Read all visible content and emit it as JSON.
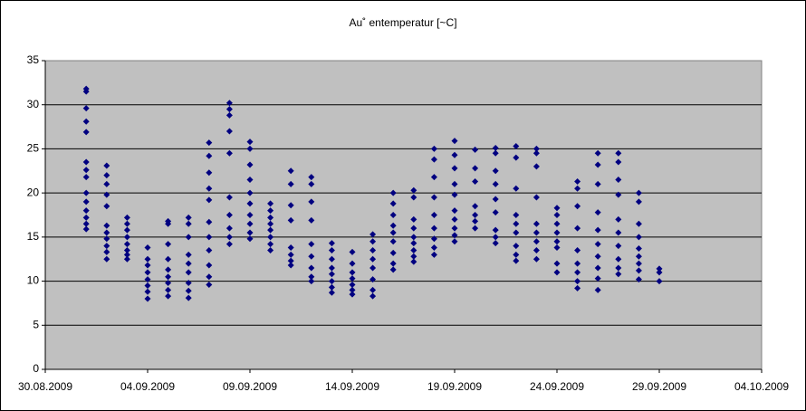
{
  "chart_data": {
    "type": "scatter",
    "title": "Au˚ entemperatur [~C]",
    "xlim": [
      "30.08.2009",
      "04.10.2009"
    ],
    "xticks": [
      "30.08.2009",
      "04.09.2009",
      "09.09.2009",
      "14.09.2009",
      "19.09.2009",
      "24.09.2009",
      "29.09.2009",
      "04.10.2009"
    ],
    "ylim": [
      0,
      35
    ],
    "yticks": [
      0,
      5,
      10,
      15,
      20,
      25,
      30,
      35
    ],
    "grid": true,
    "series": [
      {
        "color": "#000080",
        "x": [
          "01.09.2009",
          "01.09.2009",
          "01.09.2009",
          "01.09.2009",
          "01.09.2009",
          "01.09.2009",
          "01.09.2009",
          "01.09.2009",
          "01.09.2009",
          "01.09.2009",
          "01.09.2009",
          "01.09.2009",
          "01.09.2009",
          "01.09.2009",
          "02.09.2009",
          "02.09.2009",
          "02.09.2009",
          "02.09.2009",
          "02.09.2009",
          "02.09.2009",
          "02.09.2009",
          "02.09.2009",
          "02.09.2009",
          "02.09.2009",
          "02.09.2009",
          "03.09.2009",
          "03.09.2009",
          "03.09.2009",
          "03.09.2009",
          "03.09.2009",
          "03.09.2009",
          "03.09.2009",
          "03.09.2009",
          "04.09.2009",
          "04.09.2009",
          "04.09.2009",
          "04.09.2009",
          "04.09.2009",
          "04.09.2009",
          "04.09.2009",
          "04.09.2009",
          "05.09.2009",
          "05.09.2009",
          "05.09.2009",
          "05.09.2009",
          "05.09.2009",
          "05.09.2009",
          "05.09.2009",
          "05.09.2009",
          "05.09.2009",
          "06.09.2009",
          "06.09.2009",
          "06.09.2009",
          "06.09.2009",
          "06.09.2009",
          "06.09.2009",
          "06.09.2009",
          "06.09.2009",
          "06.09.2009",
          "07.09.2009",
          "07.09.2009",
          "07.09.2009",
          "07.09.2009",
          "07.09.2009",
          "07.09.2009",
          "07.09.2009",
          "07.09.2009",
          "07.09.2009",
          "07.09.2009",
          "07.09.2009",
          "08.09.2009",
          "08.09.2009",
          "08.09.2009",
          "08.09.2009",
          "08.09.2009",
          "08.09.2009",
          "08.09.2009",
          "08.09.2009",
          "08.09.2009",
          "08.09.2009",
          "09.09.2009",
          "09.09.2009",
          "09.09.2009",
          "09.09.2009",
          "09.09.2009",
          "09.09.2009",
          "09.09.2009",
          "09.09.2009",
          "09.09.2009",
          "09.09.2009",
          "10.09.2009",
          "10.09.2009",
          "10.09.2009",
          "10.09.2009",
          "10.09.2009",
          "10.09.2009",
          "10.09.2009",
          "10.09.2009",
          "11.09.2009",
          "11.09.2009",
          "11.09.2009",
          "11.09.2009",
          "11.09.2009",
          "11.09.2009",
          "11.09.2009",
          "11.09.2009",
          "12.09.2009",
          "12.09.2009",
          "12.09.2009",
          "12.09.2009",
          "12.09.2009",
          "12.09.2009",
          "12.09.2009",
          "12.09.2009",
          "12.09.2009",
          "13.09.2009",
          "13.09.2009",
          "13.09.2009",
          "13.09.2009",
          "13.09.2009",
          "13.09.2009",
          "13.09.2009",
          "13.09.2009",
          "14.09.2009",
          "14.09.2009",
          "14.09.2009",
          "14.09.2009",
          "14.09.2009",
          "14.09.2009",
          "14.09.2009",
          "15.09.2009",
          "15.09.2009",
          "15.09.2009",
          "15.09.2009",
          "15.09.2009",
          "15.09.2009",
          "15.09.2009",
          "15.09.2009",
          "16.09.2009",
          "16.09.2009",
          "16.09.2009",
          "16.09.2009",
          "16.09.2009",
          "16.09.2009",
          "16.09.2009",
          "16.09.2009",
          "16.09.2009",
          "17.09.2009",
          "17.09.2009",
          "17.09.2009",
          "17.09.2009",
          "17.09.2009",
          "17.09.2009",
          "17.09.2009",
          "17.09.2009",
          "17.09.2009",
          "18.09.2009",
          "18.09.2009",
          "18.09.2009",
          "18.09.2009",
          "18.09.2009",
          "18.09.2009",
          "18.09.2009",
          "18.09.2009",
          "18.09.2009",
          "19.09.2009",
          "19.09.2009",
          "19.09.2009",
          "19.09.2009",
          "19.09.2009",
          "19.09.2009",
          "19.09.2009",
          "19.09.2009",
          "19.09.2009",
          "19.09.2009",
          "20.09.2009",
          "20.09.2009",
          "20.09.2009",
          "20.09.2009",
          "20.09.2009",
          "20.09.2009",
          "20.09.2009",
          "21.09.2009",
          "21.09.2009",
          "21.09.2009",
          "21.09.2009",
          "21.09.2009",
          "21.09.2009",
          "21.09.2009",
          "21.09.2009",
          "21.09.2009",
          "22.09.2009",
          "22.09.2009",
          "22.09.2009",
          "22.09.2009",
          "22.09.2009",
          "22.09.2009",
          "22.09.2009",
          "22.09.2009",
          "22.09.2009",
          "23.09.2009",
          "23.09.2009",
          "23.09.2009",
          "23.09.2009",
          "23.09.2009",
          "23.09.2009",
          "23.09.2009",
          "23.09.2009",
          "23.09.2009",
          "24.09.2009",
          "24.09.2009",
          "24.09.2009",
          "24.09.2009",
          "24.09.2009",
          "24.09.2009",
          "24.09.2009",
          "24.09.2009",
          "25.09.2009",
          "25.09.2009",
          "25.09.2009",
          "25.09.2009",
          "25.09.2009",
          "25.09.2009",
          "25.09.2009",
          "25.09.2009",
          "25.09.2009",
          "26.09.2009",
          "26.09.2009",
          "26.09.2009",
          "26.09.2009",
          "26.09.2009",
          "26.09.2009",
          "26.09.2009",
          "26.09.2009",
          "26.09.2009",
          "26.09.2009",
          "27.09.2009",
          "27.09.2009",
          "27.09.2009",
          "27.09.2009",
          "27.09.2009",
          "27.09.2009",
          "27.09.2009",
          "27.09.2009",
          "27.09.2009",
          "27.09.2009",
          "28.09.2009",
          "28.09.2009",
          "28.09.2009",
          "28.09.2009",
          "28.09.2009",
          "28.09.2009",
          "28.09.2009",
          "28.09.2009",
          "28.09.2009",
          "29.09.2009",
          "29.09.2009",
          "29.09.2009"
        ],
        "values": [
          31.8,
          31.5,
          29.6,
          28.1,
          26.9,
          23.5,
          22.6,
          21.8,
          20.0,
          19.0,
          18.0,
          17.2,
          16.5,
          15.9,
          23.1,
          22.0,
          21.0,
          19.8,
          18.5,
          16.3,
          15.5,
          14.8,
          14.0,
          13.3,
          12.5,
          17.2,
          16.5,
          15.8,
          15.0,
          14.2,
          13.5,
          13.0,
          12.5,
          13.8,
          12.5,
          11.8,
          11.0,
          10.2,
          9.5,
          8.8,
          8.0,
          16.8,
          16.5,
          14.2,
          12.5,
          11.3,
          10.5,
          9.8,
          9.0,
          8.3,
          17.2,
          16.5,
          15.0,
          13.0,
          12.0,
          11.0,
          9.8,
          8.9,
          8.1,
          25.7,
          24.2,
          22.3,
          20.5,
          19.2,
          16.7,
          15.0,
          13.5,
          11.8,
          10.5,
          9.6,
          30.2,
          29.5,
          28.8,
          27.0,
          24.5,
          19.5,
          17.5,
          16.0,
          15.0,
          14.2,
          25.8,
          25.0,
          23.2,
          21.5,
          20.0,
          18.8,
          17.5,
          16.5,
          15.5,
          14.8,
          18.8,
          18.0,
          17.2,
          16.5,
          15.8,
          15.0,
          14.2,
          13.5,
          22.5,
          21.0,
          18.6,
          16.9,
          13.8,
          13.0,
          12.3,
          11.8,
          21.8,
          21.0,
          19.0,
          16.9,
          14.2,
          12.8,
          11.5,
          10.5,
          10.0,
          14.3,
          13.5,
          12.5,
          11.5,
          10.8,
          10.0,
          9.3,
          8.7,
          13.3,
          12.0,
          11.0,
          10.3,
          9.6,
          9.0,
          8.5,
          15.3,
          14.5,
          13.5,
          12.5,
          11.5,
          10.2,
          9.0,
          8.3,
          20.0,
          18.8,
          17.5,
          16.3,
          15.5,
          14.5,
          13.2,
          12.0,
          11.3,
          20.3,
          19.5,
          17.0,
          16.0,
          15.0,
          14.3,
          13.5,
          12.8,
          12.2,
          25.0,
          23.8,
          21.8,
          19.5,
          17.5,
          16.0,
          14.8,
          13.8,
          13.0,
          25.9,
          24.3,
          22.8,
          21.0,
          19.8,
          18.0,
          17.0,
          16.0,
          15.2,
          14.5,
          24.9,
          22.8,
          21.3,
          18.5,
          17.5,
          16.8,
          16.0,
          25.1,
          24.5,
          22.5,
          21.0,
          19.3,
          17.8,
          15.8,
          15.0,
          14.3,
          25.3,
          24.0,
          20.5,
          17.5,
          16.5,
          15.5,
          14.0,
          13.0,
          12.3,
          25.0,
          24.5,
          23.0,
          19.5,
          16.5,
          15.5,
          14.5,
          13.5,
          12.5,
          18.3,
          17.5,
          16.5,
          15.5,
          14.5,
          13.8,
          12.0,
          11.0,
          21.3,
          20.5,
          18.5,
          16.0,
          13.5,
          12.0,
          11.0,
          10.0,
          9.2,
          24.5,
          23.2,
          21.0,
          17.8,
          15.8,
          14.2,
          12.8,
          11.5,
          10.3,
          9.0,
          24.5,
          23.5,
          21.5,
          19.8,
          17.0,
          15.5,
          14.0,
          12.5,
          11.5,
          10.8,
          20.0,
          19.0,
          16.5,
          15.0,
          13.7,
          12.8,
          12.0,
          11.2,
          10.2,
          11.4,
          11.0,
          10.0
        ]
      }
    ]
  }
}
